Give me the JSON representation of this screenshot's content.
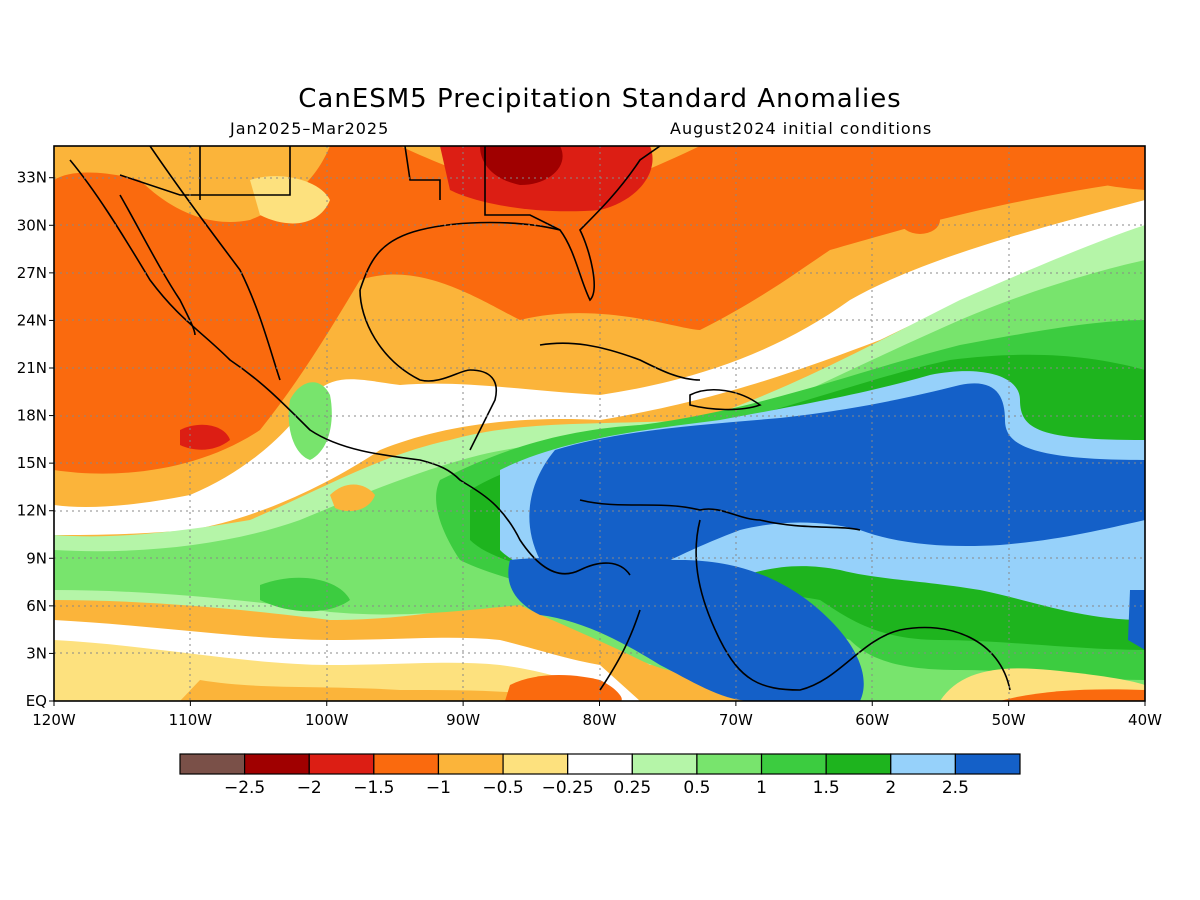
{
  "title": "CanESM5 Precipitation Standard Anomalies",
  "subtitle_left": "Jan2025–Mar2025",
  "subtitle_right": "August2024 initial conditions",
  "map": {
    "lon_range": [
      -120,
      -40
    ],
    "lat_range": [
      0,
      35
    ],
    "lat_ticks": [
      {
        "value": 33,
        "label": "33N"
      },
      {
        "value": 30,
        "label": "30N"
      },
      {
        "value": 27,
        "label": "27N"
      },
      {
        "value": 24,
        "label": "24N"
      },
      {
        "value": 21,
        "label": "21N"
      },
      {
        "value": 18,
        "label": "18N"
      },
      {
        "value": 15,
        "label": "15N"
      },
      {
        "value": 12,
        "label": "12N"
      },
      {
        "value": 9,
        "label": "9N"
      },
      {
        "value": 6,
        "label": "6N"
      },
      {
        "value": 3,
        "label": "3N"
      },
      {
        "value": 0,
        "label": "EQ"
      }
    ],
    "lon_ticks": [
      {
        "value": -120,
        "label": "120W"
      },
      {
        "value": -110,
        "label": "110W"
      },
      {
        "value": -100,
        "label": "100W"
      },
      {
        "value": -90,
        "label": "90W"
      },
      {
        "value": -80,
        "label": "80W"
      },
      {
        "value": -70,
        "label": "70W"
      },
      {
        "value": -60,
        "label": "60W"
      },
      {
        "value": -50,
        "label": "50W"
      },
      {
        "value": -40,
        "label": "40W"
      }
    ],
    "grid": "dotted"
  },
  "colorbar": {
    "colors": [
      "#7a5048",
      "#a00000",
      "#dc1e14",
      "#fa6a0e",
      "#fbb43a",
      "#fde17e",
      "#ffffff",
      "#b5f5a8",
      "#78e46d",
      "#3ccc40",
      "#1eb41e",
      "#96d1fa",
      "#1460c8"
    ],
    "labels": [
      "−2.5",
      "−2",
      "−1.5",
      "−1",
      "−0.5",
      "−0.25",
      "0.25",
      "0.5",
      "1",
      "1.5",
      "2",
      "2.5"
    ]
  }
}
